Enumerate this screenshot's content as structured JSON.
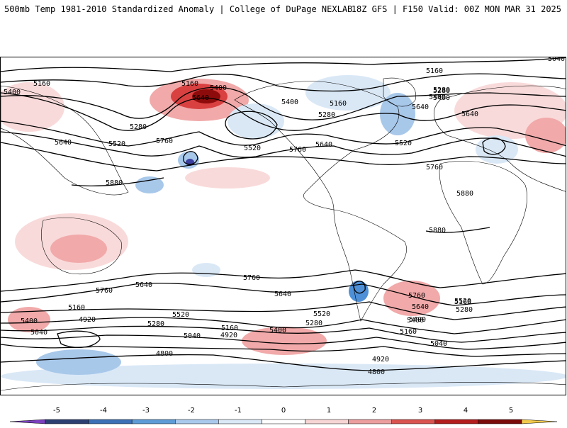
{
  "header": {
    "title": "500mb Temp 1981-2010 Standardized Anomaly | College of DuPage NEXLAB",
    "meta": "18Z GFS | F150 Valid: 00Z MON MAR 31 2025"
  },
  "contour_labels": [
    "5040",
    "5160",
    "5400",
    "5400",
    "5160",
    "5640",
    "5280",
    "5640",
    "5520",
    "5760",
    "5520",
    "5880",
    "5760",
    "5640",
    "5280",
    "5160",
    "5400",
    "5520",
    "5280",
    "5400",
    "5640",
    "5760",
    "5880",
    "5880",
    "5760",
    "5640",
    "5760",
    "5640",
    "5520",
    "5280",
    "5400",
    "5160",
    "5400",
    "5280",
    "5040",
    "5520",
    "5400",
    "5160",
    "4920",
    "5280",
    "5160",
    "5040",
    "4920",
    "4800",
    "4920",
    "4800",
    "5040",
    "5160",
    "5400",
    "5520",
    "5640",
    "5760",
    "5160",
    "5280",
    "5400",
    "5640"
  ],
  "colorbar": {
    "ticks": [
      "-5",
      "-4",
      "-3",
      "-2",
      "-1",
      "0",
      "1",
      "2",
      "3",
      "4",
      "5"
    ],
    "colors": [
      "#7b3fbf",
      "#2c3f73",
      "#3b6fb6",
      "#5c9bd6",
      "#a9c9ec",
      "#dbe9f7",
      "#ffffff",
      "#f7d5d5",
      "#ec9d9d",
      "#d9534f",
      "#b31d1d",
      "#7a0b0b",
      "#f2c94c"
    ]
  },
  "map": {
    "land_outline_color": "#000000",
    "contour_color": "#000000",
    "warm_colors": [
      "#f9dada",
      "#f1a9a9",
      "#d94040",
      "#8e0b0b"
    ],
    "cool_colors": [
      "#dae8f6",
      "#a8c8ea",
      "#4e90d8",
      "#3b3fa0"
    ]
  }
}
